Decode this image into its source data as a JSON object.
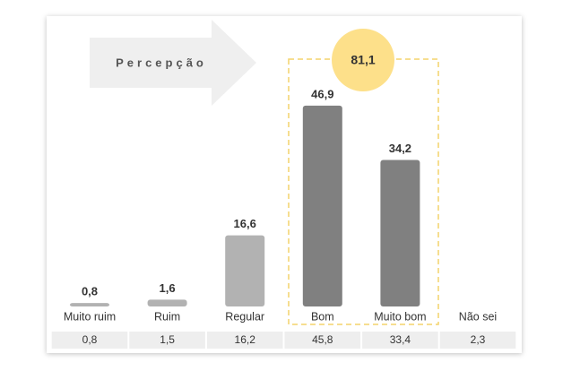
{
  "chart_data": {
    "type": "bar",
    "title": "Percepção",
    "categories": [
      "Muito ruim",
      "Ruim",
      "Regular",
      "Bom",
      "Muito bom",
      "Não sei"
    ],
    "values": [
      0.8,
      1.6,
      16.6,
      46.9,
      34.2,
      null
    ],
    "value_labels": [
      "0,8",
      "1,6",
      "16,6",
      "46,9",
      "34,2",
      null
    ],
    "colors": [
      "#b2b2b2",
      "#b2b2b2",
      "#b2b2b2",
      "#808080",
      "#808080",
      "#808080"
    ],
    "highlight": {
      "label": "81,1",
      "color": "#fde08a",
      "border": "#f3d36b"
    },
    "table": {
      "cells": [
        "0,8",
        "1,5",
        "16,2",
        "45,8",
        "33,4",
        "2,3"
      ]
    }
  }
}
